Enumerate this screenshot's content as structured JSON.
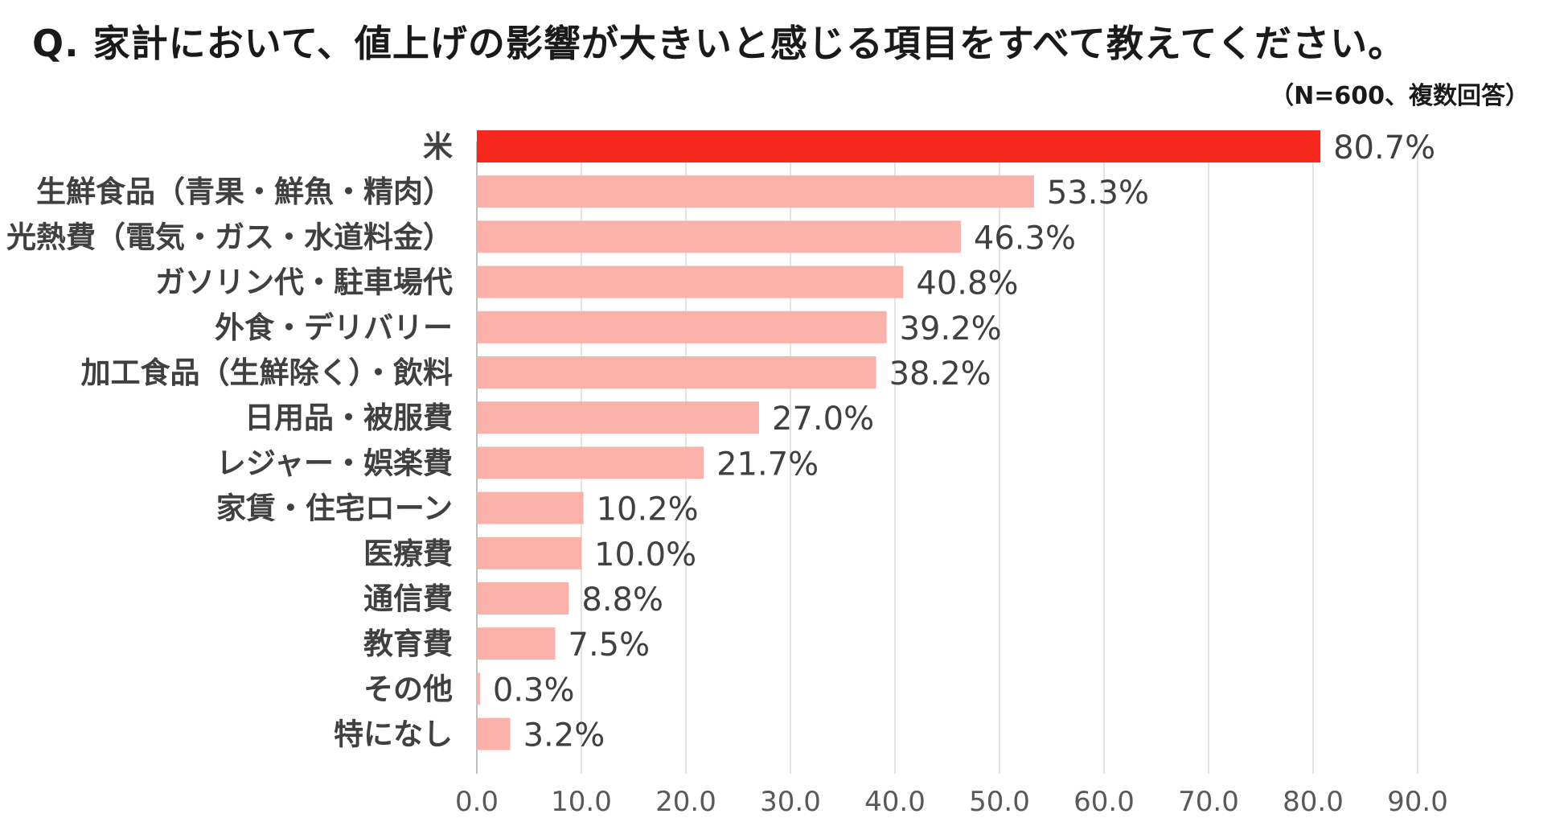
{
  "header": {
    "title": "Q. 家計において、値上げの影響が大きいと感じる項目をすべて教えてください。",
    "subtitle": "（N=600、複数回答）"
  },
  "colors": {
    "highlight": "#f5281e",
    "bar": "#f9b1a9",
    "text": "#404040",
    "grid": "#d9d9d9"
  },
  "chart_data": {
    "type": "bar",
    "orientation": "horizontal",
    "title": "Q. 家計において、値上げの影響が大きいと感じる項目をすべて教えてください。",
    "subtitle": "（N=600、複数回答）",
    "xlabel": "",
    "ylabel": "",
    "xlim": [
      0,
      90
    ],
    "ticks": [
      "0.0",
      "10.0",
      "20.0",
      "30.0",
      "40.0",
      "50.0",
      "60.0",
      "70.0",
      "80.0",
      "90.0"
    ],
    "tick_values": [
      0,
      10,
      20,
      30,
      40,
      50,
      60,
      70,
      80,
      90
    ],
    "grid": true,
    "categories": [
      "米",
      "生鮮食品（青果・鮮魚・精肉）",
      "光熱費（電気・ガス・水道料金）",
      "ガソリン代・駐車場代",
      "外食・デリバリー",
      "加工食品（生鮮除く）・飲料",
      "日用品・被服費",
      "レジャー・娯楽費",
      "家賃・住宅ローン",
      "医療費",
      "通信費",
      "教育費",
      "その他",
      "特になし"
    ],
    "values": [
      80.7,
      53.3,
      46.3,
      40.8,
      39.2,
      38.2,
      27.0,
      21.7,
      10.2,
      10.0,
      8.8,
      7.5,
      0.3,
      3.2
    ],
    "value_labels": [
      "80.7%",
      "53.3%",
      "46.3%",
      "40.8%",
      "39.2%",
      "38.2%",
      "27.0%",
      "21.7%",
      "10.2%",
      "10.0%",
      "8.8%",
      "7.5%",
      "0.3%",
      "3.2%"
    ],
    "highlight_index": 0
  }
}
